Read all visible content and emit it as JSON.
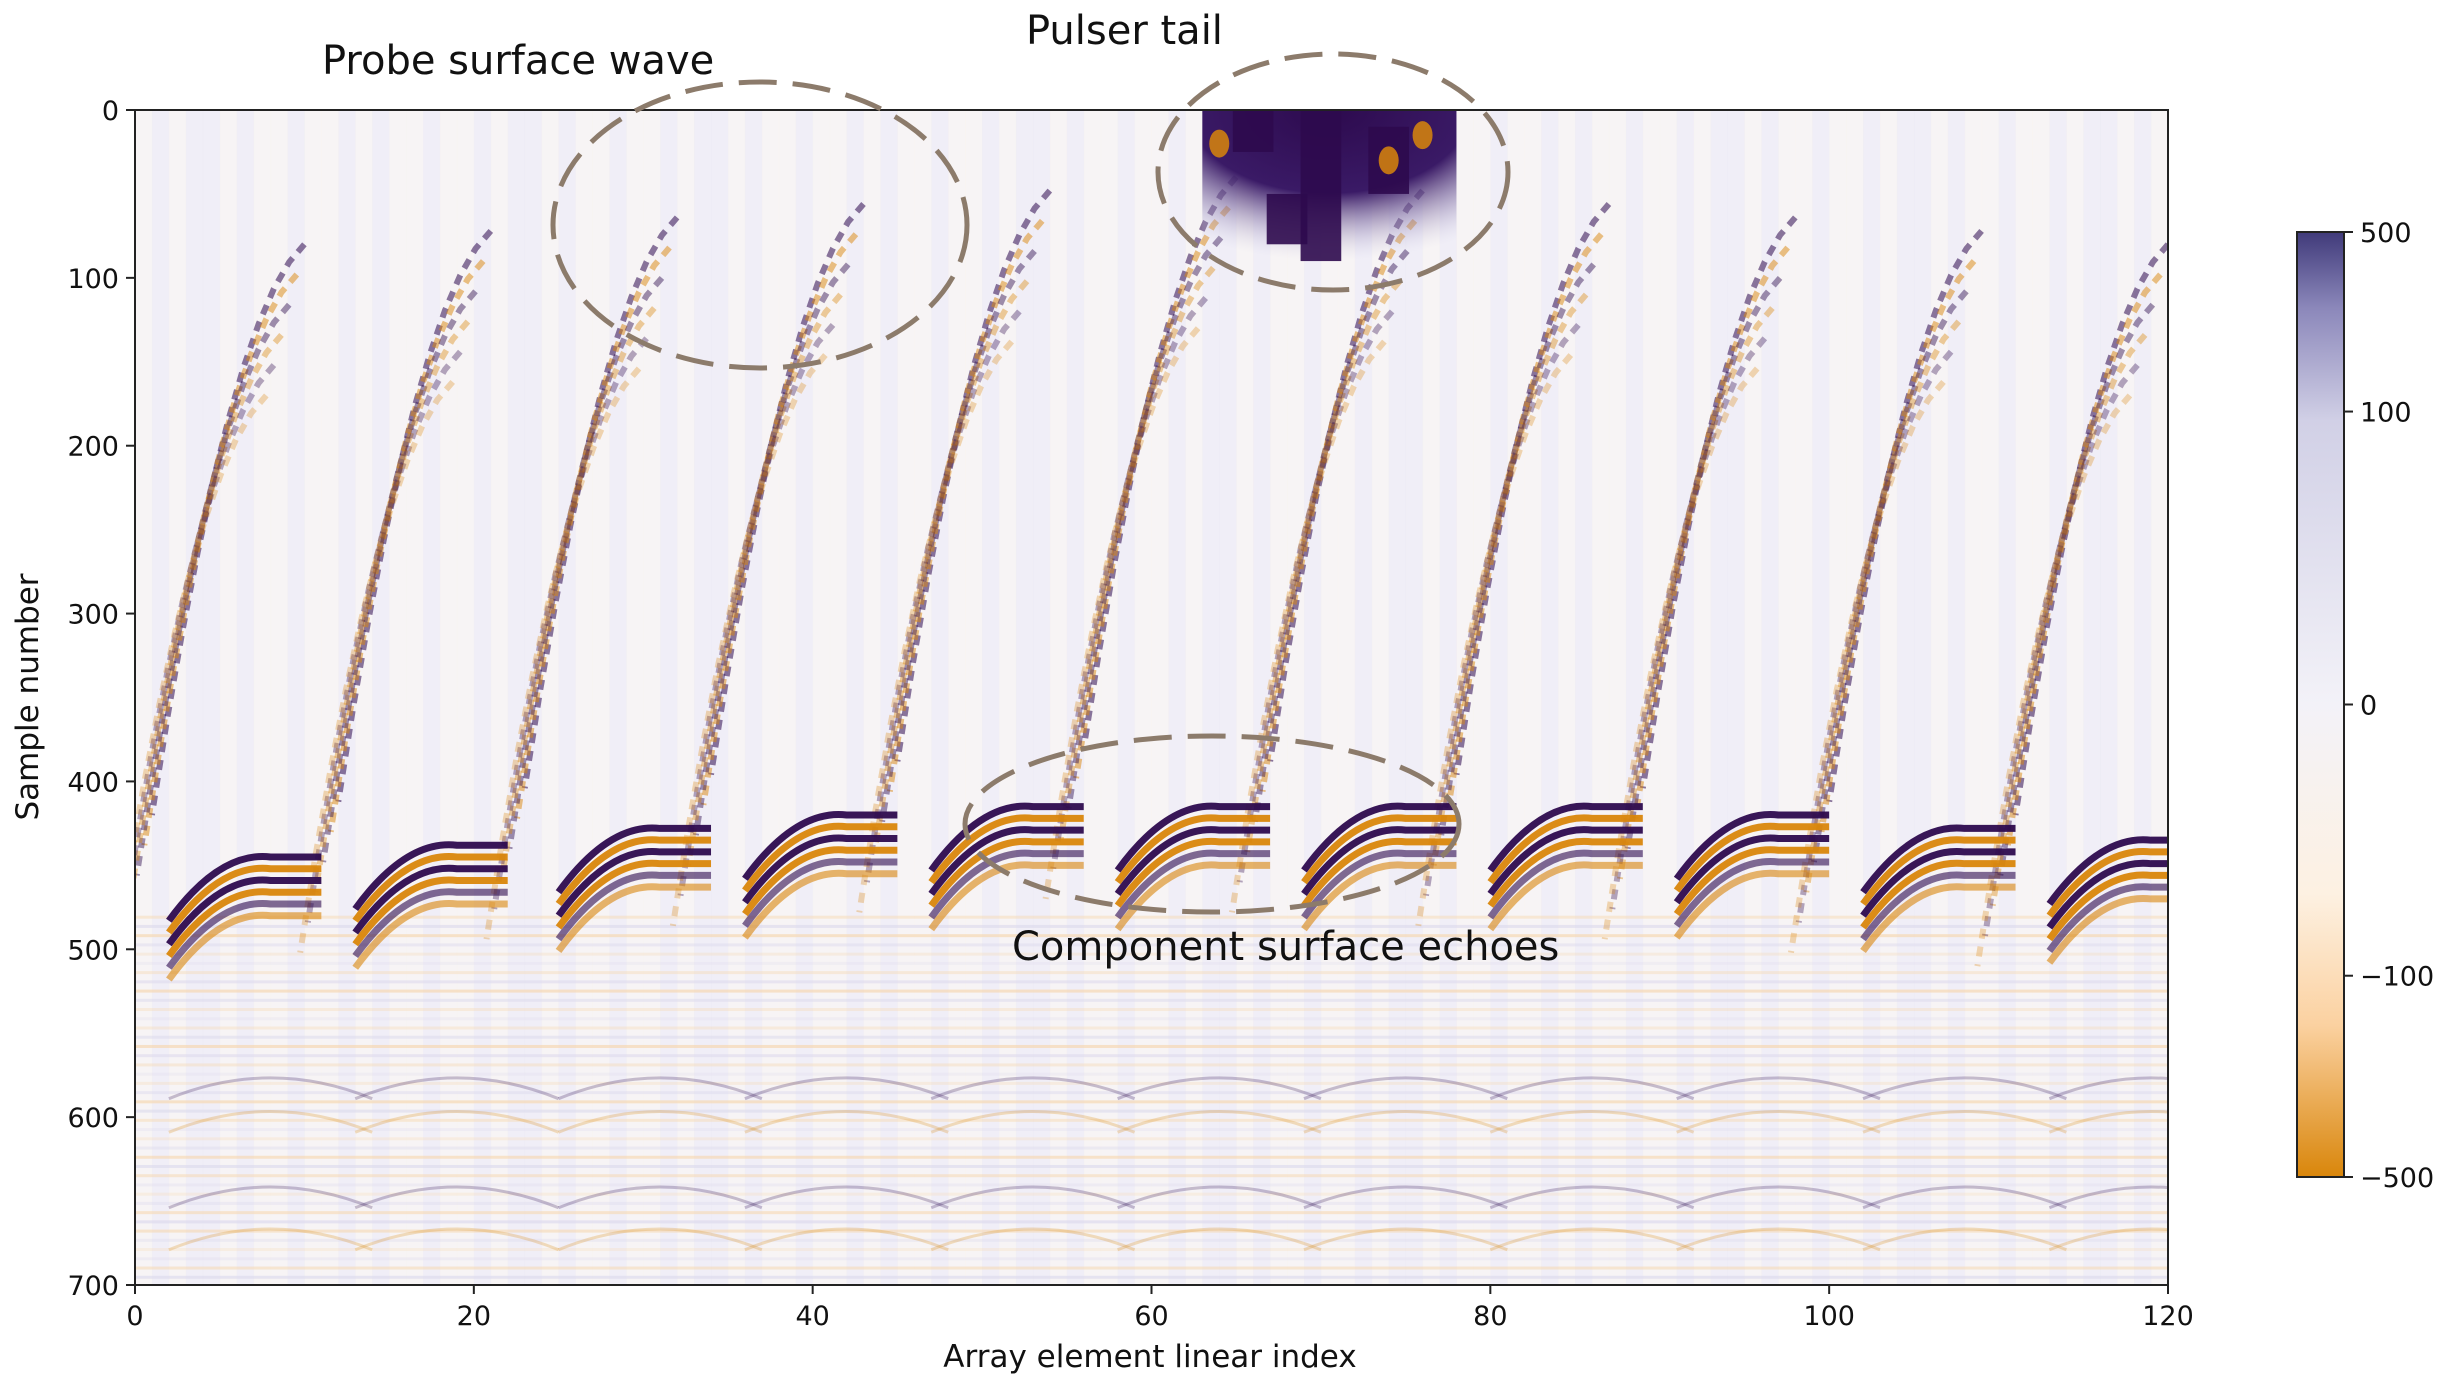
{
  "chart_data": {
    "type": "heatmap",
    "title": "",
    "xlabel": "Array element linear index",
    "ylabel": "Sample number",
    "xlim": [
      0,
      120
    ],
    "ylim": [
      700,
      0
    ],
    "x_ticks": [
      "0",
      "20",
      "40",
      "60",
      "80",
      "100",
      "120"
    ],
    "y_ticks": [
      "0",
      "100",
      "200",
      "300",
      "400",
      "500",
      "600",
      "700"
    ],
    "colorbar": {
      "ticks": [
        "500",
        "100",
        "0",
        "−100",
        "−500"
      ],
      "scale": "symlog",
      "range": [
        -500,
        500
      ],
      "positive_color": "#2d0a4e",
      "negative_color": "#d9860b",
      "zero_color": "#f3f2f8"
    },
    "annotations": [
      "Probe surface wave",
      "Pulser tail",
      "Component surface echoes"
    ],
    "surface_echo_arcs": [
      {
        "center": 8,
        "apex": 445
      },
      {
        "center": 19,
        "apex": 438
      },
      {
        "center": 31,
        "apex": 428
      },
      {
        "center": 42,
        "apex": 420
      },
      {
        "center": 53,
        "apex": 415
      },
      {
        "center": 64,
        "apex": 415
      },
      {
        "center": 75,
        "apex": 415
      },
      {
        "center": 86,
        "apex": 415
      },
      {
        "center": 97,
        "apex": 420
      },
      {
        "center": 108,
        "apex": 428
      },
      {
        "center": 119,
        "apex": 435
      }
    ],
    "probe_surface_wave_ends": [
      10,
      21,
      32,
      43,
      54,
      65,
      76,
      87,
      98,
      109,
      120
    ],
    "pulser_tail_range": [
      63,
      78
    ]
  }
}
